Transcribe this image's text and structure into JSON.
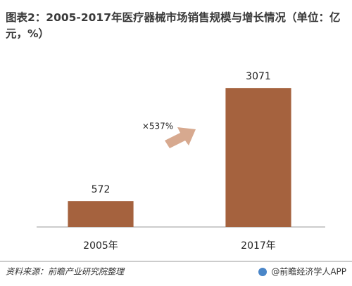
{
  "chart_data": {
    "type": "bar",
    "title": "图表2：2005-2017年医疗器械市场销售规模与增长情况（单位：亿元，%）",
    "categories": [
      "2005年",
      "2017年"
    ],
    "values": [
      572,
      3071
    ],
    "color": "#a5623e",
    "ylim": [
      0,
      3400
    ],
    "annotation": "×537%",
    "source": "资料来源：前瞻产业研究院整理",
    "credit": "@前瞻经济学人APP"
  }
}
